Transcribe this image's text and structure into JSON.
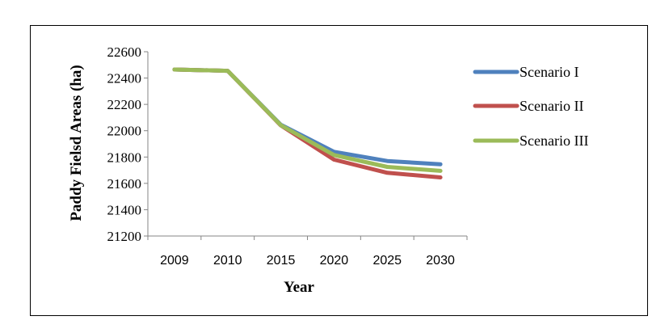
{
  "chart_data": {
    "type": "line",
    "title": "",
    "xlabel": "Year",
    "ylabel": "Paddy Fielsd Areas  (ha)",
    "categories": [
      "2009",
      "2010",
      "2015",
      "2020",
      "2025",
      "2030"
    ],
    "ylim": [
      21200,
      22600
    ],
    "yticks": [
      21200,
      21400,
      21600,
      21800,
      22000,
      22200,
      22400,
      22600
    ],
    "grid": false,
    "legend_position": "right",
    "series": [
      {
        "name": "Scenario I",
        "color": "#4f81bd",
        "values": [
          22465,
          22455,
          22045,
          21840,
          21770,
          21745
        ]
      },
      {
        "name": "Scenario II",
        "color": "#c0504d",
        "values": [
          22465,
          22455,
          22040,
          21780,
          21680,
          21645
        ]
      },
      {
        "name": "Scenario III",
        "color": "#9bbb59",
        "values": [
          22465,
          22455,
          22042,
          21815,
          21725,
          21695
        ]
      }
    ]
  }
}
